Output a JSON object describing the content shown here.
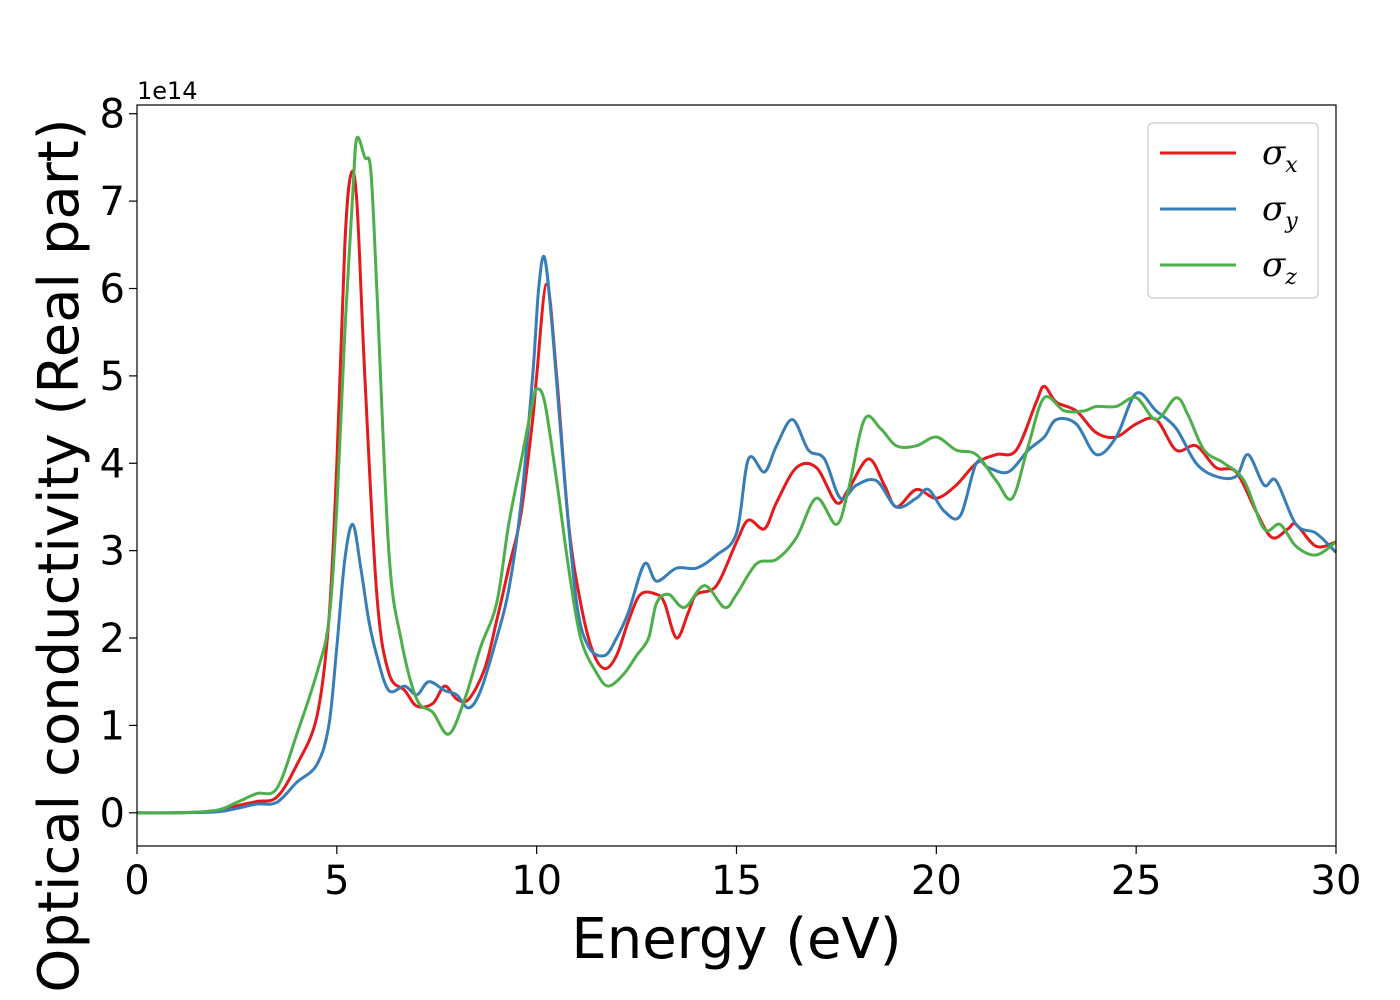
{
  "chart_data": {
    "type": "line",
    "xlabel": "Energy (eV)",
    "ylabel": "Optical conductivity (Real part)",
    "y_offset_label": "1e14",
    "y_multiplier": 100000000000000.0,
    "xlim": [
      0,
      30
    ],
    "ylim": [
      -0.38,
      8.1
    ],
    "x_ticks": [
      0,
      5,
      10,
      15,
      20,
      25,
      30
    ],
    "y_ticks": [
      0,
      1,
      2,
      3,
      4,
      5,
      6,
      7,
      8
    ],
    "grid": false,
    "legend_position": "top-right",
    "series": [
      {
        "name": "σ",
        "subscript": "x",
        "color": "#e41a1c",
        "points": [
          [
            0,
            0
          ],
          [
            1,
            0
          ],
          [
            2,
            0.02
          ],
          [
            2.5,
            0.08
          ],
          [
            3,
            0.13
          ],
          [
            3.5,
            0.18
          ],
          [
            4,
            0.55
          ],
          [
            4.5,
            1.1
          ],
          [
            4.8,
            2.2
          ],
          [
            5.0,
            4.0
          ],
          [
            5.2,
            6.5
          ],
          [
            5.35,
            7.3
          ],
          [
            5.5,
            7.0
          ],
          [
            5.7,
            5.0
          ],
          [
            6.0,
            2.5
          ],
          [
            6.3,
            1.6
          ],
          [
            6.7,
            1.4
          ],
          [
            7.0,
            1.22
          ],
          [
            7.4,
            1.25
          ],
          [
            7.7,
            1.45
          ],
          [
            8.0,
            1.3
          ],
          [
            8.3,
            1.3
          ],
          [
            8.7,
            1.65
          ],
          [
            9.0,
            2.2
          ],
          [
            9.3,
            2.8
          ],
          [
            9.6,
            3.4
          ],
          [
            9.9,
            4.5
          ],
          [
            10.0,
            5.0
          ],
          [
            10.25,
            6.05
          ],
          [
            10.5,
            5.0
          ],
          [
            10.8,
            3.3
          ],
          [
            11.1,
            2.4
          ],
          [
            11.4,
            1.85
          ],
          [
            11.7,
            1.65
          ],
          [
            12.0,
            1.8
          ],
          [
            12.3,
            2.2
          ],
          [
            12.6,
            2.5
          ],
          [
            13.0,
            2.5
          ],
          [
            13.2,
            2.4
          ],
          [
            13.5,
            2.0
          ],
          [
            13.8,
            2.3
          ],
          [
            14.0,
            2.5
          ],
          [
            14.5,
            2.6
          ],
          [
            15.0,
            3.1
          ],
          [
            15.3,
            3.35
          ],
          [
            15.7,
            3.25
          ],
          [
            16.0,
            3.55
          ],
          [
            16.5,
            3.95
          ],
          [
            17.0,
            3.95
          ],
          [
            17.5,
            3.55
          ],
          [
            17.8,
            3.7
          ],
          [
            18.3,
            4.05
          ],
          [
            18.7,
            3.75
          ],
          [
            19.0,
            3.5
          ],
          [
            19.5,
            3.7
          ],
          [
            20.0,
            3.6
          ],
          [
            20.5,
            3.75
          ],
          [
            21.0,
            4.0
          ],
          [
            21.5,
            4.1
          ],
          [
            22.0,
            4.15
          ],
          [
            22.5,
            4.7
          ],
          [
            22.7,
            4.88
          ],
          [
            23.0,
            4.7
          ],
          [
            23.5,
            4.6
          ],
          [
            24.0,
            4.35
          ],
          [
            24.5,
            4.3
          ],
          [
            25.0,
            4.45
          ],
          [
            25.5,
            4.5
          ],
          [
            26.0,
            4.15
          ],
          [
            26.5,
            4.2
          ],
          [
            27.0,
            3.95
          ],
          [
            27.5,
            3.9
          ],
          [
            28.0,
            3.45
          ],
          [
            28.4,
            3.15
          ],
          [
            28.8,
            3.25
          ],
          [
            29.0,
            3.3
          ],
          [
            29.5,
            3.05
          ],
          [
            30.0,
            3.1
          ]
        ]
      },
      {
        "name": "σ",
        "subscript": "y",
        "color": "#377eb8",
        "points": [
          [
            0,
            0
          ],
          [
            1,
            0
          ],
          [
            2,
            0.01
          ],
          [
            2.5,
            0.05
          ],
          [
            3,
            0.1
          ],
          [
            3.5,
            0.12
          ],
          [
            4,
            0.35
          ],
          [
            4.5,
            0.55
          ],
          [
            4.8,
            1.0
          ],
          [
            5.0,
            1.9
          ],
          [
            5.2,
            2.9
          ],
          [
            5.4,
            3.3
          ],
          [
            5.6,
            2.8
          ],
          [
            5.8,
            2.2
          ],
          [
            6.0,
            1.8
          ],
          [
            6.3,
            1.4
          ],
          [
            6.7,
            1.45
          ],
          [
            7.0,
            1.35
          ],
          [
            7.3,
            1.5
          ],
          [
            7.7,
            1.4
          ],
          [
            8.0,
            1.35
          ],
          [
            8.3,
            1.2
          ],
          [
            8.6,
            1.4
          ],
          [
            9.0,
            2.0
          ],
          [
            9.3,
            2.55
          ],
          [
            9.6,
            3.5
          ],
          [
            9.9,
            5.0
          ],
          [
            10.05,
            6.0
          ],
          [
            10.2,
            6.35
          ],
          [
            10.4,
            5.5
          ],
          [
            10.7,
            3.8
          ],
          [
            11.0,
            2.4
          ],
          [
            11.3,
            1.9
          ],
          [
            11.7,
            1.8
          ],
          [
            12.0,
            2.0
          ],
          [
            12.3,
            2.3
          ],
          [
            12.7,
            2.85
          ],
          [
            13.0,
            2.65
          ],
          [
            13.5,
            2.8
          ],
          [
            14.0,
            2.8
          ],
          [
            14.5,
            2.95
          ],
          [
            15.0,
            3.2
          ],
          [
            15.3,
            4.05
          ],
          [
            15.7,
            3.9
          ],
          [
            16.0,
            4.2
          ],
          [
            16.4,
            4.5
          ],
          [
            16.8,
            4.15
          ],
          [
            17.2,
            4.05
          ],
          [
            17.6,
            3.6
          ],
          [
            18.0,
            3.75
          ],
          [
            18.5,
            3.8
          ],
          [
            19.0,
            3.5
          ],
          [
            19.5,
            3.6
          ],
          [
            19.8,
            3.7
          ],
          [
            20.2,
            3.45
          ],
          [
            20.6,
            3.4
          ],
          [
            21.0,
            4.0
          ],
          [
            21.3,
            3.95
          ],
          [
            21.8,
            3.9
          ],
          [
            22.3,
            4.15
          ],
          [
            22.7,
            4.3
          ],
          [
            23.0,
            4.5
          ],
          [
            23.5,
            4.45
          ],
          [
            24.0,
            4.1
          ],
          [
            24.5,
            4.3
          ],
          [
            25.0,
            4.8
          ],
          [
            25.5,
            4.6
          ],
          [
            26.0,
            4.4
          ],
          [
            26.5,
            4.0
          ],
          [
            27.0,
            3.85
          ],
          [
            27.5,
            3.85
          ],
          [
            27.8,
            4.1
          ],
          [
            28.2,
            3.75
          ],
          [
            28.5,
            3.8
          ],
          [
            29.0,
            3.3
          ],
          [
            29.5,
            3.2
          ],
          [
            30.0,
            2.98
          ]
        ]
      },
      {
        "name": "σ",
        "subscript": "z",
        "color": "#4daf4a",
        "points": [
          [
            0,
            0
          ],
          [
            1,
            0
          ],
          [
            2,
            0.03
          ],
          [
            2.5,
            0.12
          ],
          [
            3,
            0.22
          ],
          [
            3.5,
            0.28
          ],
          [
            4,
            0.9
          ],
          [
            4.5,
            1.6
          ],
          [
            4.8,
            2.2
          ],
          [
            5.0,
            3.5
          ],
          [
            5.2,
            5.5
          ],
          [
            5.4,
            7.1
          ],
          [
            5.5,
            7.72
          ],
          [
            5.7,
            7.5
          ],
          [
            5.85,
            7.35
          ],
          [
            6.0,
            6.0
          ],
          [
            6.3,
            3.0
          ],
          [
            6.6,
            2.0
          ],
          [
            7.0,
            1.3
          ],
          [
            7.4,
            1.15
          ],
          [
            7.8,
            0.9
          ],
          [
            8.2,
            1.3
          ],
          [
            8.6,
            1.9
          ],
          [
            9.0,
            2.4
          ],
          [
            9.3,
            3.3
          ],
          [
            9.6,
            4.0
          ],
          [
            9.9,
            4.7
          ],
          [
            10.0,
            4.85
          ],
          [
            10.2,
            4.7
          ],
          [
            10.5,
            3.8
          ],
          [
            10.8,
            2.8
          ],
          [
            11.1,
            2.0
          ],
          [
            11.5,
            1.6
          ],
          [
            11.8,
            1.45
          ],
          [
            12.2,
            1.6
          ],
          [
            12.5,
            1.8
          ],
          [
            12.8,
            2.0
          ],
          [
            13.0,
            2.4
          ],
          [
            13.3,
            2.5
          ],
          [
            13.7,
            2.35
          ],
          [
            14.2,
            2.6
          ],
          [
            14.7,
            2.35
          ],
          [
            15.0,
            2.5
          ],
          [
            15.5,
            2.85
          ],
          [
            16.0,
            2.9
          ],
          [
            16.5,
            3.15
          ],
          [
            17.0,
            3.6
          ],
          [
            17.5,
            3.3
          ],
          [
            17.8,
            3.7
          ],
          [
            18.2,
            4.5
          ],
          [
            18.6,
            4.4
          ],
          [
            19.0,
            4.2
          ],
          [
            19.5,
            4.2
          ],
          [
            20.0,
            4.3
          ],
          [
            20.5,
            4.15
          ],
          [
            21.0,
            4.1
          ],
          [
            21.5,
            3.8
          ],
          [
            21.9,
            3.6
          ],
          [
            22.3,
            4.2
          ],
          [
            22.7,
            4.75
          ],
          [
            23.2,
            4.6
          ],
          [
            23.7,
            4.6
          ],
          [
            24.0,
            4.65
          ],
          [
            24.5,
            4.65
          ],
          [
            25.0,
            4.75
          ],
          [
            25.5,
            4.5
          ],
          [
            26.0,
            4.75
          ],
          [
            26.3,
            4.55
          ],
          [
            26.7,
            4.15
          ],
          [
            27.2,
            4.0
          ],
          [
            27.7,
            3.8
          ],
          [
            28.2,
            3.25
          ],
          [
            28.6,
            3.3
          ],
          [
            29.0,
            3.05
          ],
          [
            29.5,
            2.95
          ],
          [
            30.0,
            3.1
          ]
        ]
      }
    ]
  }
}
